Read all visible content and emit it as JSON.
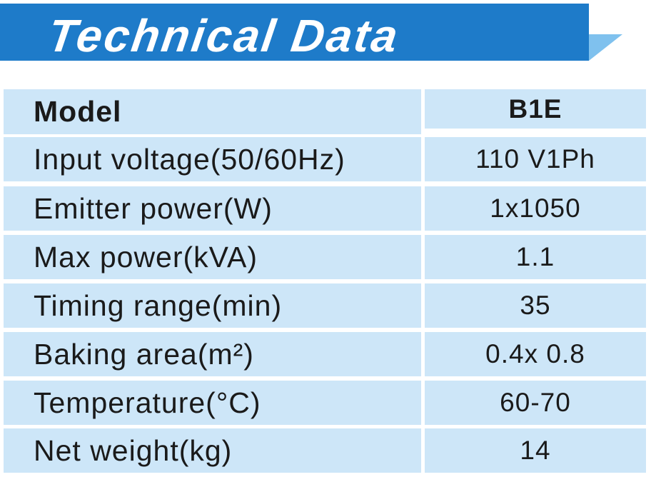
{
  "header": {
    "title": "Technical Data"
  },
  "table": {
    "columns": [
      "Model",
      "B1E"
    ],
    "rows": [
      [
        "Input voltage(50/60Hz)",
        "110 V1Ph"
      ],
      [
        "Emitter power(W)",
        "1x1050"
      ],
      [
        "Max power(kVA)",
        "1.1"
      ],
      [
        "Timing range(min)",
        "35"
      ],
      [
        "Baking area(m²)",
        "0.4x 0.8"
      ],
      [
        "Temperature(°C)",
        "60-70"
      ],
      [
        "Net weight(kg)",
        "14"
      ]
    ]
  }
}
